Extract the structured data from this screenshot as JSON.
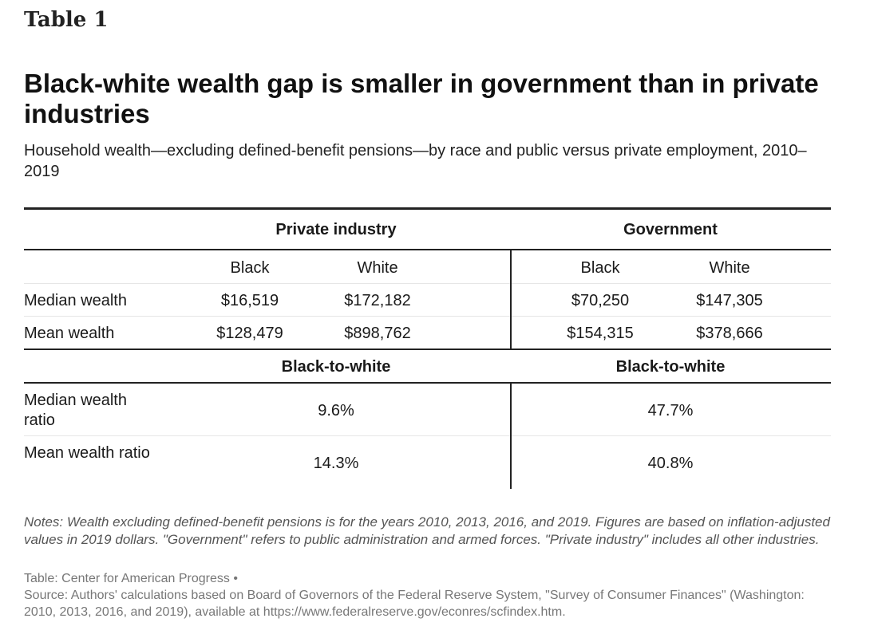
{
  "table_label": "Table 1",
  "title": "Black-white wealth gap is smaller in government than in private industries",
  "subtitle": "Household wealth—excluding defined-benefit pensions—by race and public versus private employment, 2010–2019",
  "groups": {
    "private": "Private industry",
    "government": "Government"
  },
  "columns": {
    "private_black": "Black",
    "private_white": "White",
    "gov_black": "Black",
    "gov_white": "White"
  },
  "rows": [
    {
      "label": "Median wealth",
      "private_black": "$16,519",
      "private_white": "$172,182",
      "gov_black": "$70,250",
      "gov_white": "$147,305"
    },
    {
      "label": "Mean wealth",
      "private_black": "$128,479",
      "private_white": "$898,762",
      "gov_black": "$154,315",
      "gov_white": "$378,666"
    }
  ],
  "ratio_header": {
    "private": "Black-to-white",
    "government": "Black-to-white"
  },
  "ratios": [
    {
      "label": "Median wealth ratio",
      "private": "9.6%",
      "government": "47.7%"
    },
    {
      "label": "Mean wealth ratio",
      "private": "14.3%",
      "government": "40.8%"
    }
  ],
  "notes": "Notes: Wealth excluding defined-benefit pensions is for the years 2010, 2013, 2016, and 2019. Figures are based on inflation-adjusted values in 2019 dollars. \"Government\" refers to public administration and armed forces. \"Private industry\" includes all other industries.",
  "source_line1": "Table: Center for American Progress •",
  "source_line2": "Source: Authors' calculations based on Board of Governors of the Federal Reserve System, \"Survey of Consumer Finances\" (Washington: 2010, 2013, 2016, and 2019), available at https://www.federalreserve.gov/econres/scfindex.htm."
}
